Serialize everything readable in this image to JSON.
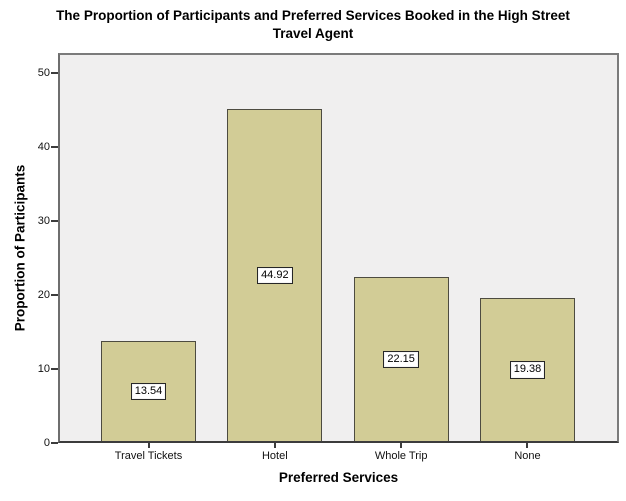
{
  "title": "The Proportion of Participants and Preferred Services Booked in the High Street\nTravel Agent",
  "chart_data": {
    "type": "bar",
    "categories": [
      "Travel Tickets",
      "Hotel",
      "Whole Trip",
      "None"
    ],
    "values": [
      13.54,
      44.92,
      22.15,
      19.38
    ],
    "value_labels": [
      "13.54",
      "44.92",
      "22.15",
      "19.38"
    ],
    "title": "The Proportion of Participants and Preferred Services Booked in the High Street Travel Agent",
    "xlabel": "Preferred Services",
    "ylabel": "Proportion of Participants",
    "yticks": [
      0,
      10,
      20,
      30,
      40,
      50
    ],
    "ylim": [
      0,
      52.5
    ],
    "grid": false,
    "legend": "none",
    "value_labels_style": "boxed, centered inside bars",
    "colors": {
      "bar_fill": "#D2CC96",
      "bar_border": "#4D4B40",
      "plot_background": "#F0EFEF",
      "frame_border": "#7B7B7B",
      "axis_line": "#3C3C3C",
      "label_box_background": "#FFFFFF",
      "label_box_border": "#262626",
      "text": "#000000"
    }
  }
}
